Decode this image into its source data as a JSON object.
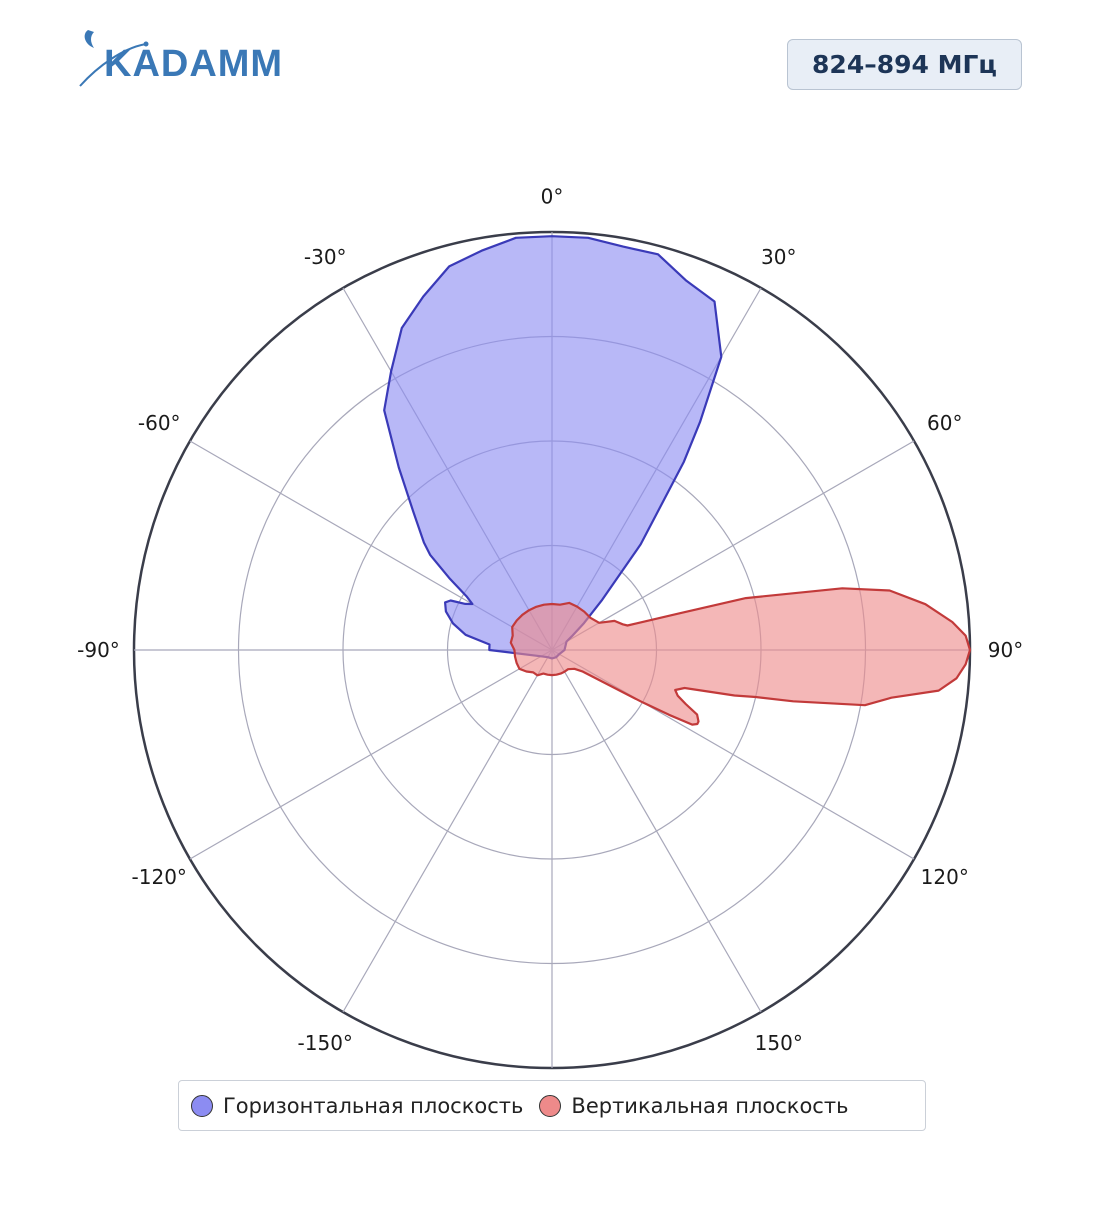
{
  "brand": {
    "logo_text": "KADAMM"
  },
  "frequency_label": "824–894 МГц",
  "colors": {
    "horizontal_fill": "#8c8cf2",
    "horizontal_line": "#3a3ab8",
    "vertical_fill": "#ee8a8a",
    "vertical_line": "#c23a3a",
    "grid": "#a8a8ba",
    "outer_ring": "#3a3d4a",
    "logo": "#3a78b6"
  },
  "legend": {
    "horizontal_label": "Горизонтальная плоскость",
    "vertical_label": "Вертикальная плоскость"
  },
  "chart_data": {
    "type": "polar-area",
    "title": "",
    "angle_ticks": [
      0,
      30,
      60,
      90,
      120,
      150,
      180,
      -150,
      -120,
      -90,
      -60,
      -30
    ],
    "angle_tick_labels": [
      "0°",
      "30°",
      "60°",
      "90°",
      "120°",
      "150°",
      "",
      "-150°",
      "-120°",
      "-90°",
      "-60°",
      "-30°"
    ],
    "angle_grid_step": 30,
    "radial_range": [
      0,
      1
    ],
    "radial_rings": [
      0.25,
      0.5,
      0.75,
      1.0
    ],
    "radial_tick_labels_shown": false,
    "grid": true,
    "legend_position": "bottom",
    "series": [
      {
        "name": "Горизонтальная плоскость",
        "angles": [
          -90,
          -85,
          -80,
          -75,
          -70,
          -66,
          -64,
          -62,
          -60,
          -58,
          -55,
          -52,
          -50,
          -45,
          -40,
          -35,
          -30,
          -25,
          -20,
          -15,
          -10,
          -5,
          0,
          5,
          10,
          15,
          20,
          25,
          30,
          33,
          35,
          40,
          45,
          50,
          55,
          60,
          90,
          120,
          150,
          180,
          -150,
          -120
        ],
        "values": [
          0.15,
          0.15,
          0.21,
          0.245,
          0.27,
          0.28,
          0.27,
          0.235,
          0.22,
          0.24,
          0.3,
          0.37,
          0.4,
          0.47,
          0.57,
          0.7,
          0.77,
          0.85,
          0.9,
          0.95,
          0.97,
          0.99,
          0.99,
          0.99,
          0.98,
          0.98,
          0.94,
          0.92,
          0.81,
          0.65,
          0.55,
          0.33,
          0.17,
          0.1,
          0.06,
          0.04,
          0.03,
          0.02,
          0.02,
          0.02,
          0.02,
          0.03
        ]
      },
      {
        "name": "Вертикальная плоскость",
        "angles": [
          0,
          10,
          20,
          30,
          40,
          50,
          60,
          65,
          70,
          72,
          74,
          75,
          78,
          80,
          83,
          86,
          88,
          90,
          92,
          94,
          96,
          98,
          100,
          102,
          103,
          104,
          105,
          106,
          108,
          110,
          112,
          114,
          116,
          117,
          118,
          119,
          120,
          125,
          130,
          140,
          150,
          160,
          170,
          180,
          -170,
          -160,
          -150,
          -140,
          -130,
          -120,
          -110,
          -100,
          -90,
          -80,
          -70,
          -60,
          -50,
          -40,
          -30,
          -20,
          -10
        ],
        "values": [
          0.11,
          0.11,
          0.12,
          0.12,
          0.12,
          0.12,
          0.13,
          0.165,
          0.18,
          0.19,
          0.32,
          0.48,
          0.71,
          0.82,
          0.9,
          0.96,
          0.99,
          1.0,
          0.99,
          0.97,
          0.93,
          0.82,
          0.76,
          0.59,
          0.5,
          0.45,
          0.38,
          0.33,
          0.31,
          0.32,
          0.345,
          0.38,
          0.39,
          0.39,
          0.38,
          0.32,
          0.25,
          0.09,
          0.07,
          0.06,
          0.06,
          0.06,
          0.06,
          0.06,
          0.06,
          0.06,
          0.07,
          0.07,
          0.08,
          0.09,
          0.09,
          0.09,
          0.09,
          0.1,
          0.1,
          0.11,
          0.11,
          0.11,
          0.11,
          0.11,
          0.11
        ]
      }
    ]
  }
}
